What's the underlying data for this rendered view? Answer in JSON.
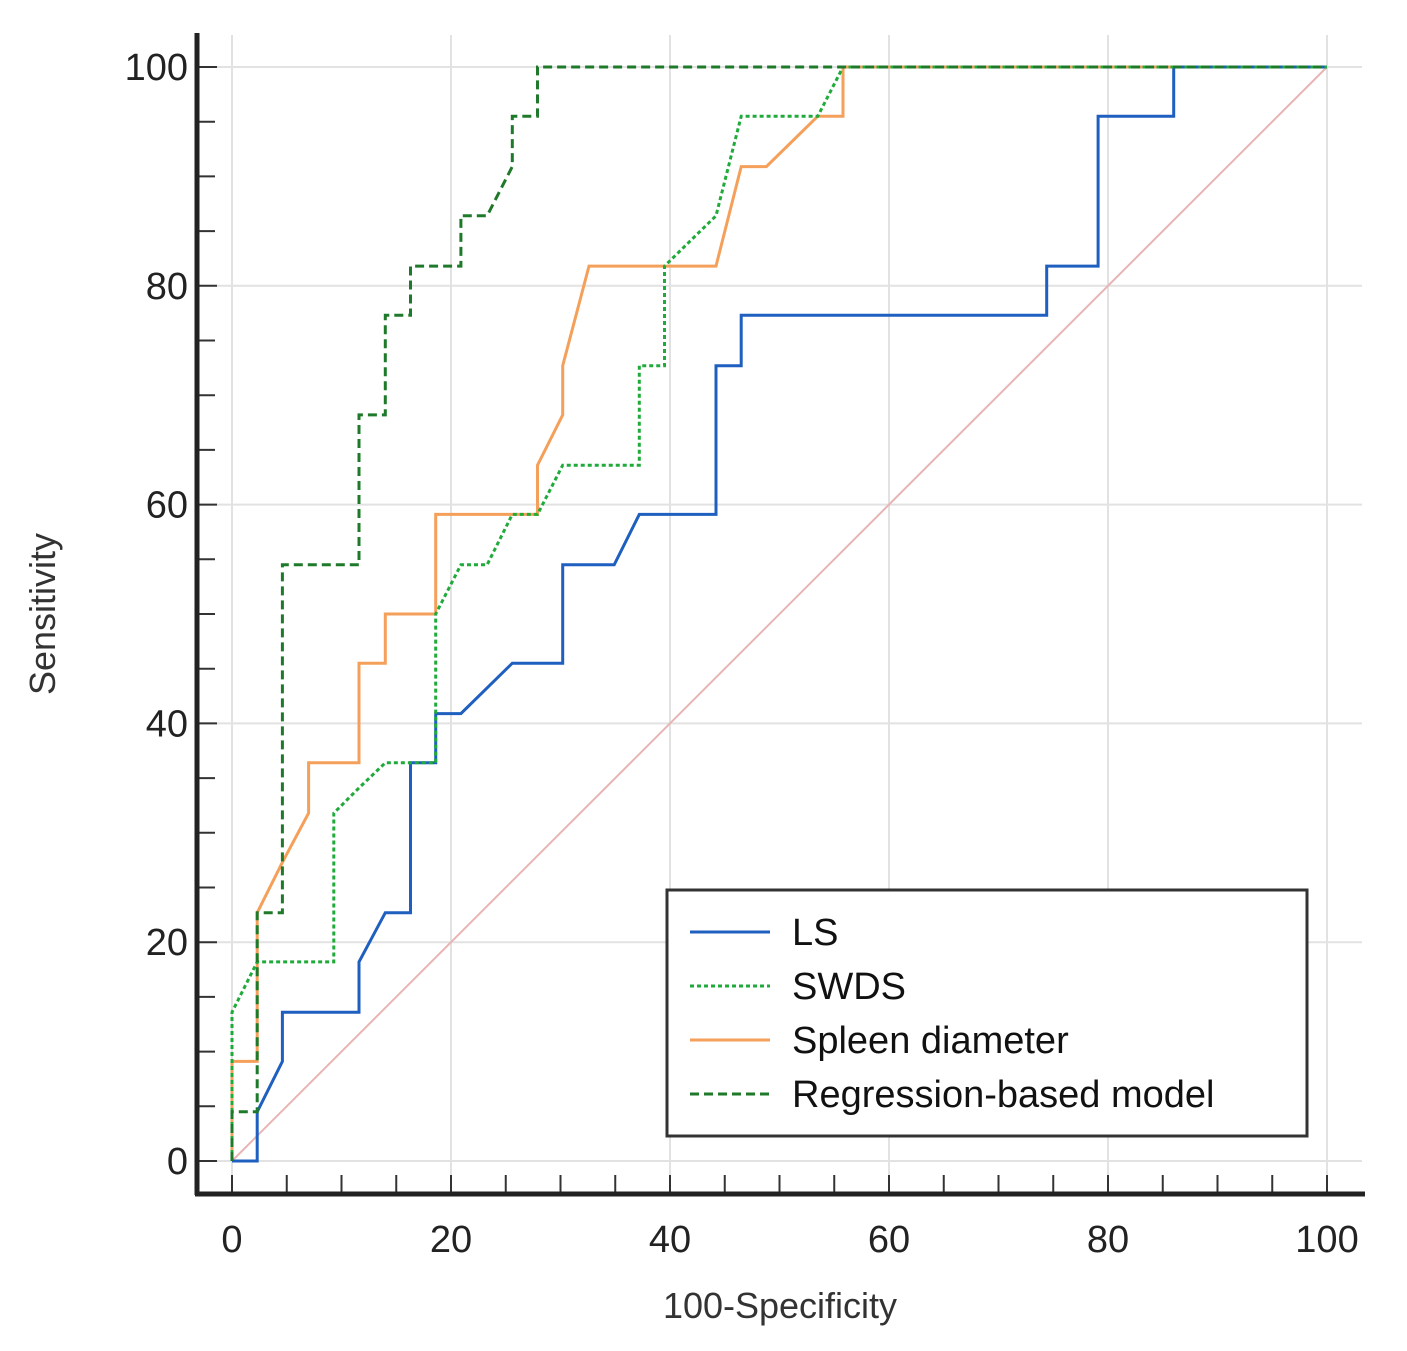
{
  "chart_data": {
    "type": "line",
    "title": "",
    "xlabel": "100-Specificity",
    "ylabel": "Sensitivity",
    "xlim": [
      0,
      100
    ],
    "ylim": [
      0,
      100
    ],
    "xticks": [
      0,
      20,
      40,
      60,
      80,
      100
    ],
    "yticks": [
      0,
      20,
      40,
      60,
      80,
      100
    ],
    "grid": true,
    "legend_position": "bottom-right",
    "reference_line": {
      "name": "chance",
      "color": "#e8b4b4",
      "points": [
        [
          0,
          0
        ],
        [
          100,
          100
        ]
      ]
    },
    "series": [
      {
        "name": "LS",
        "color": "#1f5fbf",
        "style": "solid",
        "points": [
          [
            0,
            0
          ],
          [
            2.3,
            0
          ],
          [
            2.3,
            4.5
          ],
          [
            4.6,
            9.1
          ],
          [
            4.6,
            13.6
          ],
          [
            11.6,
            13.6
          ],
          [
            11.6,
            18.2
          ],
          [
            14,
            22.7
          ],
          [
            16.3,
            22.7
          ],
          [
            16.3,
            36.4
          ],
          [
            18.6,
            36.4
          ],
          [
            18.6,
            40.9
          ],
          [
            20.9,
            40.9
          ],
          [
            25.6,
            45.5
          ],
          [
            30.2,
            45.5
          ],
          [
            30.2,
            54.5
          ],
          [
            34.9,
            54.5
          ],
          [
            37.2,
            59.1
          ],
          [
            44.2,
            59.1
          ],
          [
            44.2,
            72.7
          ],
          [
            46.5,
            72.7
          ],
          [
            46.5,
            77.3
          ],
          [
            74.4,
            77.3
          ],
          [
            74.4,
            81.8
          ],
          [
            79.1,
            81.8
          ],
          [
            79.1,
            95.5
          ],
          [
            86,
            95.5
          ],
          [
            86,
            100
          ],
          [
            100,
            100
          ]
        ]
      },
      {
        "name": "SWDS",
        "color": "#1faa3a",
        "style": "dotted",
        "points": [
          [
            0,
            0
          ],
          [
            0,
            13.6
          ],
          [
            2.3,
            18.2
          ],
          [
            9.3,
            18.2
          ],
          [
            9.3,
            31.8
          ],
          [
            11.6,
            34.1
          ],
          [
            14,
            36.4
          ],
          [
            18.6,
            36.4
          ],
          [
            18.6,
            50
          ],
          [
            20.9,
            54.5
          ],
          [
            23.3,
            54.5
          ],
          [
            25.6,
            59.1
          ],
          [
            27.9,
            59.1
          ],
          [
            30.2,
            63.6
          ],
          [
            37.2,
            63.6
          ],
          [
            37.2,
            72.7
          ],
          [
            39.5,
            72.7
          ],
          [
            39.5,
            81.8
          ],
          [
            44.2,
            86.4
          ],
          [
            46.5,
            95.5
          ],
          [
            53.5,
            95.5
          ],
          [
            55.8,
            100
          ],
          [
            100,
            100
          ]
        ]
      },
      {
        "name": "Spleen diameter",
        "color": "#f5a05a",
        "style": "solid",
        "points": [
          [
            0,
            0
          ],
          [
            0,
            9.1
          ],
          [
            2.3,
            9.1
          ],
          [
            2.3,
            22.7
          ],
          [
            4.6,
            27.3
          ],
          [
            7,
            31.8
          ],
          [
            7,
            36.4
          ],
          [
            11.6,
            36.4
          ],
          [
            11.6,
            45.5
          ],
          [
            14,
            45.5
          ],
          [
            14,
            50
          ],
          [
            18.6,
            50
          ],
          [
            18.6,
            59.1
          ],
          [
            27.9,
            59.1
          ],
          [
            27.9,
            63.6
          ],
          [
            30.2,
            68.2
          ],
          [
            30.2,
            72.7
          ],
          [
            32.6,
            81.8
          ],
          [
            44.2,
            81.8
          ],
          [
            46.5,
            90.9
          ],
          [
            48.8,
            90.9
          ],
          [
            53.5,
            95.5
          ],
          [
            55.8,
            95.5
          ],
          [
            55.8,
            100
          ],
          [
            100,
            100
          ]
        ]
      },
      {
        "name": "Regression-based model",
        "color": "#1e7a2a",
        "style": "dashed",
        "points": [
          [
            0,
            0
          ],
          [
            0,
            4.5
          ],
          [
            2.3,
            4.5
          ],
          [
            2.3,
            22.7
          ],
          [
            4.6,
            22.7
          ],
          [
            4.6,
            54.5
          ],
          [
            11.6,
            54.5
          ],
          [
            11.6,
            68.2
          ],
          [
            14,
            68.2
          ],
          [
            14,
            77.3
          ],
          [
            16.3,
            77.3
          ],
          [
            16.3,
            81.8
          ],
          [
            20.9,
            81.8
          ],
          [
            20.9,
            86.4
          ],
          [
            23.3,
            86.4
          ],
          [
            25.6,
            90.9
          ],
          [
            25.6,
            95.5
          ],
          [
            27.9,
            95.5
          ],
          [
            27.9,
            100
          ],
          [
            100,
            100
          ]
        ]
      }
    ]
  }
}
